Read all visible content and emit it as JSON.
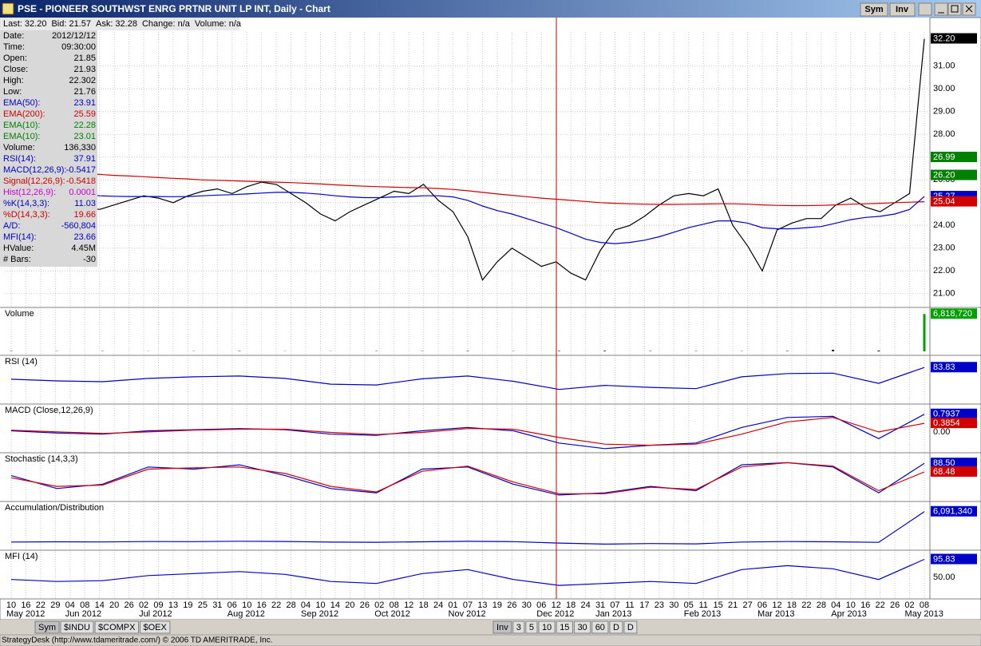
{
  "window": {
    "title": "PSE - PIONEER SOUTHWST ENRG PRTNR UNIT LP INT, Daily - Chart",
    "buttons": [
      "Sym",
      "Inv"
    ]
  },
  "quote_bar": [
    "Last: 32.20",
    "Bid: 21.57",
    "Ask: 32.28",
    "Change: n/a",
    "Volume: n/a"
  ],
  "data_window": [
    {
      "label": "Date:",
      "value": "2012/12/12",
      "color": "#000000"
    },
    {
      "label": "Time:",
      "value": "09:30:00",
      "color": "#000000"
    },
    {
      "label": "Open:",
      "value": "21.85",
      "color": "#000000"
    },
    {
      "label": "Close:",
      "value": "21.93",
      "color": "#000000"
    },
    {
      "label": "High:",
      "value": "22.302",
      "color": "#000000"
    },
    {
      "label": "Low:",
      "value": "21.76",
      "color": "#000000"
    },
    {
      "label": "EMA(50):",
      "value": "23.91",
      "color": "#0000c8"
    },
    {
      "label": "EMA(200):",
      "value": "25.59",
      "color": "#d00000"
    },
    {
      "label": "EMA(10):",
      "value": "22.28",
      "color": "#008000"
    },
    {
      "label": "EMA(10):",
      "value": "23.01",
      "color": "#008000"
    },
    {
      "label": "Volume:",
      "value": "136,330",
      "color": "#000000"
    },
    {
      "label": "RSI(14):",
      "value": "37.91",
      "color": "#0000c8"
    },
    {
      "label": "MACD(12,26,9):",
      "value": "-0.5417",
      "color": "#0000c8"
    },
    {
      "label": "Signal(12,26,9):",
      "value": "-0.5418",
      "color": "#d00000"
    },
    {
      "label": "Hist(12,26,9):",
      "value": "0.0001",
      "color": "#d000d0"
    },
    {
      "label": "%K(14,3,3):",
      "value": "11.03",
      "color": "#0000c8"
    },
    {
      "label": "%D(14,3,3):",
      "value": "19.66",
      "color": "#d00000"
    },
    {
      "label": "A/D:",
      "value": "-560,804",
      "color": "#0000c8"
    },
    {
      "label": "MFI(14):",
      "value": "23.66",
      "color": "#0000c8"
    },
    {
      "label": "HValue:",
      "value": "4.45M",
      "color": "#000000"
    },
    {
      "label": "# Bars:",
      "value": "-30",
      "color": "#000000"
    }
  ],
  "chart_data": {
    "type": "line",
    "x_ticks": [
      "10",
      "16",
      "22",
      "29",
      "04",
      "08",
      "14",
      "20",
      "26",
      "02",
      "09",
      "13",
      "19",
      "25",
      "31",
      "06",
      "10",
      "16",
      "22",
      "28",
      "04",
      "10",
      "14",
      "20",
      "26",
      "02",
      "08",
      "12",
      "18",
      "24",
      "01",
      "07",
      "13",
      "19",
      "26",
      "30",
      "06",
      "12",
      "18",
      "24",
      "31",
      "07",
      "11",
      "17",
      "23",
      "30",
      "05",
      "11",
      "15",
      "21",
      "27",
      "06",
      "12",
      "18",
      "22",
      "28",
      "04",
      "10",
      "16",
      "22",
      "26",
      "02",
      "08"
    ],
    "months": [
      "May 2012",
      "Jun 2012",
      "Jul 2012",
      "Aug 2012",
      "Sep 2012",
      "Oct 2012",
      "Nov 2012",
      "Dec 2012",
      "Jan 2013",
      "Feb 2013",
      "Mar 2013",
      "Apr 2013",
      "May 2013"
    ],
    "ylim": [
      20.5,
      32.5
    ],
    "yticks": [
      {
        "value": 21,
        "label": "21.00"
      },
      {
        "value": 22,
        "label": "22.00"
      },
      {
        "value": 23,
        "label": "23.00"
      },
      {
        "value": 24,
        "label": "24.00"
      },
      {
        "value": 25,
        "label": "25.00"
      },
      {
        "value": 26,
        "label": "26.00"
      },
      {
        "value": 27,
        "label": "27.00"
      },
      {
        "value": 28,
        "label": "28.00"
      },
      {
        "value": 29,
        "label": "29.00"
      },
      {
        "value": 30,
        "label": "30.00"
      },
      {
        "value": 31,
        "label": "31.00"
      }
    ],
    "grid": true,
    "series": [
      {
        "color": "#000000",
        "values": [
          24.8,
          25.1,
          24.9,
          24.6,
          24.5,
          24.8,
          24.7,
          24.9,
          25.1,
          25.3,
          25.2,
          25.0,
          25.3,
          25.5,
          25.6,
          25.4,
          25.7,
          25.9,
          25.8,
          25.4,
          25.0,
          24.5,
          24.2,
          24.6,
          24.9,
          25.2,
          25.5,
          25.4,
          25.8,
          25.1,
          24.6,
          23.5,
          21.6,
          22.4,
          23.0,
          22.6,
          22.2,
          22.4,
          21.9,
          21.6,
          22.9,
          23.8,
          24.0,
          24.4,
          24.9,
          25.3,
          25.4,
          25.3,
          25.6,
          24.0,
          23.1,
          22.0,
          23.8,
          24.1,
          24.3,
          24.3,
          24.9,
          25.2,
          24.8,
          24.6,
          25.0,
          25.4,
          32.2
        ]
      },
      {
        "color": "#d00000",
        "values": [
          26.5,
          26.45,
          26.4,
          26.35,
          26.3,
          26.27,
          26.24,
          26.2,
          26.17,
          26.14,
          26.1,
          26.07,
          26.04,
          26.0,
          25.98,
          25.96,
          25.94,
          25.92,
          25.9,
          25.88,
          25.85,
          25.82,
          25.78,
          25.75,
          25.72,
          25.7,
          25.68,
          25.66,
          25.65,
          25.62,
          25.58,
          25.52,
          25.45,
          25.38,
          25.32,
          25.26,
          25.2,
          25.15,
          25.1,
          25.05,
          25.0,
          24.97,
          24.95,
          24.93,
          24.92,
          24.92,
          24.93,
          24.94,
          24.95,
          24.95,
          24.93,
          24.9,
          24.88,
          24.87,
          24.87,
          24.88,
          24.9,
          24.93,
          24.95,
          24.97,
          25.0,
          25.02,
          25.04
        ]
      },
      {
        "color": "#0000c8",
        "values": [
          25.6,
          25.55,
          25.5,
          25.45,
          25.4,
          25.35,
          25.3,
          25.28,
          25.27,
          25.27,
          25.27,
          25.26,
          25.27,
          25.3,
          25.33,
          25.35,
          25.38,
          25.42,
          25.45,
          25.45,
          25.42,
          25.37,
          25.3,
          25.25,
          25.22,
          25.22,
          25.25,
          25.27,
          25.3,
          25.3,
          25.25,
          25.1,
          24.85,
          24.65,
          24.5,
          24.3,
          24.1,
          23.9,
          23.65,
          23.4,
          23.25,
          23.2,
          23.25,
          23.35,
          23.5,
          23.7,
          23.9,
          24.05,
          24.2,
          24.2,
          24.1,
          23.9,
          23.85,
          23.85,
          23.9,
          23.95,
          24.1,
          24.25,
          24.35,
          24.4,
          24.5,
          24.7,
          25.27
        ]
      }
    ],
    "last_labels": [
      {
        "value": 32.2,
        "label": "32.20",
        "color": "#000000"
      },
      {
        "value": 26.99,
        "label": "26.99",
        "color": "#008000"
      },
      {
        "value": 26.2,
        "label": "26.20",
        "color": "#008000"
      },
      {
        "value": 25.27,
        "label": "25.27",
        "color": "#0000c8"
      },
      {
        "value": 25.04,
        "label": "25.04",
        "color": "#d00000"
      }
    ]
  },
  "indicators": [
    {
      "label": "Volume",
      "ylim": [
        0,
        7000000
      ],
      "bars": true,
      "series": [
        {
          "color": "#202020",
          "values": [
            60000,
            40000,
            50000,
            30000,
            45000,
            70000,
            35000,
            30000,
            60000,
            50000,
            80000,
            40000,
            90000,
            120000,
            70000,
            60000,
            50000,
            80000,
            300000,
            150000,
            6818720
          ]
        }
      ],
      "last_labels": [
        {
          "value": 6818720,
          "label": "6,818,720",
          "color": "#00a000"
        }
      ]
    },
    {
      "label": "RSI (14)",
      "ylim": [
        0,
        100
      ],
      "series": [
        {
          "color": "#0000c8",
          "values": [
            55,
            51,
            49,
            57,
            61,
            63,
            57,
            43,
            41,
            56,
            63,
            50,
            30,
            40,
            35,
            32,
            61,
            69,
            70,
            45,
            83.83
          ]
        }
      ],
      "last_labels": [
        {
          "value": 83.83,
          "label": "83.83",
          "color": "#0000c8"
        }
      ]
    },
    {
      "label": "MACD (Close,12,26,9)",
      "ylim": [
        -0.9,
        1.0
      ],
      "series": [
        {
          "color": "#0000c8",
          "values": [
            0.05,
            -0.05,
            -0.1,
            0.05,
            0.1,
            0.15,
            0.1,
            -0.1,
            -0.15,
            0.05,
            0.2,
            0.05,
            -0.5,
            -0.75,
            -0.6,
            -0.5,
            0.2,
            0.65,
            0.7,
            -0.3,
            0.7937
          ]
        },
        {
          "color": "#d00000",
          "values": [
            0.08,
            0,
            -0.07,
            0,
            0.08,
            0.12,
            0.12,
            -0.02,
            -0.12,
            -0.02,
            0.15,
            0.12,
            -0.25,
            -0.55,
            -0.6,
            -0.55,
            -0.1,
            0.45,
            0.65,
            0,
            0.3854
          ]
        }
      ],
      "last_labels": [
        {
          "value": 0.7937,
          "label": "0.7937",
          "color": "#0000c8"
        },
        {
          "value": 0.3854,
          "label": "0.3854",
          "color": "#d00000"
        },
        {
          "value": 0,
          "label": "0.00",
          "color": null
        }
      ]
    },
    {
      "label": "Stochastic (14,3,3)",
      "ylim": [
        0,
        100
      ],
      "series": [
        {
          "color": "#0000c8",
          "values": [
            60,
            30,
            40,
            80,
            75,
            85,
            60,
            30,
            20,
            75,
            80,
            40,
            15,
            20,
            35,
            25,
            85,
            90,
            80,
            20,
            88.5
          ]
        },
        {
          "color": "#d00000",
          "values": [
            55,
            35,
            38,
            75,
            78,
            80,
            65,
            35,
            22,
            70,
            82,
            45,
            18,
            18,
            33,
            28,
            80,
            90,
            82,
            25,
            68.48
          ]
        }
      ],
      "last_labels": [
        {
          "value": 88.5,
          "label": "88.50",
          "color": "#0000c8"
        },
        {
          "value": 68.48,
          "label": "68.48",
          "color": "#d00000"
        }
      ]
    },
    {
      "label": "Accumulation/Distribution",
      "ylim": [
        -1500000,
        7000000
      ],
      "series": [
        {
          "color": "#0000c8",
          "values": [
            100000,
            150000,
            120000,
            200000,
            180000,
            260000,
            220000,
            90000,
            60000,
            150000,
            250000,
            180000,
            -100000,
            -300000,
            -200000,
            -250000,
            100000,
            200000,
            150000,
            50000,
            6091340
          ]
        }
      ],
      "last_labels": [
        {
          "value": 6091340,
          "label": "6,091,340",
          "color": "#0000c8"
        }
      ]
    },
    {
      "label": "MFI (14)",
      "ylim": [
        0,
        105
      ],
      "series": [
        {
          "color": "#0000c8",
          "values": [
            45,
            40,
            42,
            55,
            60,
            65,
            58,
            40,
            35,
            60,
            70,
            45,
            30,
            35,
            40,
            35,
            70,
            80,
            72,
            45,
            95.83
          ]
        }
      ],
      "last_labels": [
        {
          "value": 95.83,
          "label": "95.83",
          "color": "#0000c8"
        },
        {
          "value": 50,
          "label": "50.00",
          "color": null
        }
      ]
    }
  ],
  "tabs_left": [
    "Sym",
    "$INDU",
    "$COMPX",
    "$OEX"
  ],
  "tabs_right": [
    "Inv",
    "3",
    "5",
    "10",
    "15",
    "30",
    "60",
    "D",
    "D"
  ],
  "status": "StrategyDesk (http://www.tdameritrade.com/) © 2006 TD AMERITRADE, Inc."
}
